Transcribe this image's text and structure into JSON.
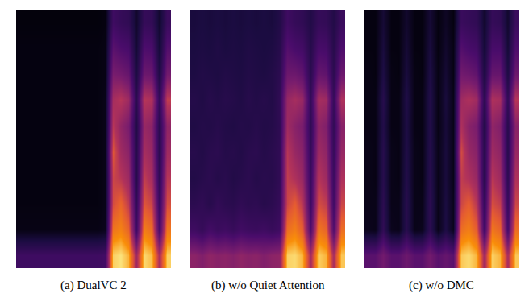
{
  "chart_data": [
    {
      "type": "heatmap",
      "title": "(a) DualVC 2",
      "zlim": [
        0,
        1
      ],
      "tick_labels": false,
      "cells": [
        [
          0.3,
          0.3,
          0.3,
          0.3,
          0.3,
          0.3,
          0.3,
          0.3,
          0.3,
          0.3,
          0.3,
          0.32,
          0.95,
          0.97,
          0.92,
          0.6,
          0.96,
          0.93,
          0.62,
          0.95
        ],
        [
          0.04,
          0.04,
          0.04,
          0.04,
          0.04,
          0.04,
          0.04,
          0.04,
          0.04,
          0.04,
          0.04,
          0.06,
          0.82,
          0.85,
          0.78,
          0.3,
          0.84,
          0.8,
          0.32,
          0.82
        ],
        [
          0.03,
          0.03,
          0.03,
          0.03,
          0.03,
          0.03,
          0.03,
          0.03,
          0.03,
          0.03,
          0.03,
          0.05,
          0.72,
          0.78,
          0.68,
          0.25,
          0.74,
          0.7,
          0.26,
          0.72
        ],
        [
          0.03,
          0.03,
          0.03,
          0.03,
          0.03,
          0.03,
          0.03,
          0.03,
          0.03,
          0.03,
          0.03,
          0.05,
          0.7,
          0.66,
          0.6,
          0.2,
          0.68,
          0.62,
          0.22,
          0.66
        ],
        [
          0.03,
          0.03,
          0.03,
          0.03,
          0.03,
          0.03,
          0.03,
          0.03,
          0.03,
          0.03,
          0.03,
          0.05,
          0.74,
          0.6,
          0.55,
          0.2,
          0.62,
          0.58,
          0.2,
          0.6
        ],
        [
          0.03,
          0.03,
          0.03,
          0.03,
          0.03,
          0.03,
          0.03,
          0.03,
          0.03,
          0.03,
          0.03,
          0.05,
          0.66,
          0.56,
          0.5,
          0.18,
          0.58,
          0.55,
          0.2,
          0.56
        ],
        [
          0.03,
          0.03,
          0.03,
          0.03,
          0.03,
          0.03,
          0.03,
          0.03,
          0.03,
          0.03,
          0.03,
          0.05,
          0.62,
          0.66,
          0.6,
          0.22,
          0.66,
          0.64,
          0.24,
          0.68
        ],
        [
          0.03,
          0.03,
          0.03,
          0.03,
          0.03,
          0.03,
          0.03,
          0.03,
          0.03,
          0.03,
          0.03,
          0.04,
          0.5,
          0.48,
          0.44,
          0.16,
          0.46,
          0.45,
          0.16,
          0.48
        ],
        [
          0.03,
          0.03,
          0.03,
          0.03,
          0.03,
          0.03,
          0.03,
          0.03,
          0.03,
          0.03,
          0.03,
          0.04,
          0.4,
          0.36,
          0.34,
          0.12,
          0.36,
          0.35,
          0.12,
          0.38
        ],
        [
          0.02,
          0.02,
          0.02,
          0.02,
          0.02,
          0.02,
          0.02,
          0.02,
          0.02,
          0.02,
          0.02,
          0.03,
          0.3,
          0.26,
          0.24,
          0.1,
          0.26,
          0.25,
          0.1,
          0.28
        ]
      ]
    },
    {
      "type": "heatmap",
      "title": "(b) w/o Quiet Attention",
      "zlim": [
        0,
        1
      ],
      "tick_labels": false,
      "cells": [
        [
          0.55,
          0.52,
          0.56,
          0.54,
          0.55,
          0.53,
          0.56,
          0.54,
          0.55,
          0.52,
          0.55,
          0.56,
          0.95,
          0.96,
          0.92,
          0.62,
          0.95,
          0.92,
          0.62,
          0.94
        ],
        [
          0.3,
          0.26,
          0.32,
          0.28,
          0.3,
          0.27,
          0.31,
          0.29,
          0.28,
          0.3,
          0.27,
          0.3,
          0.8,
          0.84,
          0.76,
          0.36,
          0.82,
          0.78,
          0.36,
          0.8
        ],
        [
          0.22,
          0.24,
          0.2,
          0.25,
          0.22,
          0.21,
          0.24,
          0.22,
          0.23,
          0.2,
          0.22,
          0.26,
          0.7,
          0.76,
          0.66,
          0.3,
          0.72,
          0.68,
          0.3,
          0.7
        ],
        [
          0.18,
          0.2,
          0.22,
          0.19,
          0.21,
          0.18,
          0.2,
          0.22,
          0.19,
          0.21,
          0.2,
          0.24,
          0.68,
          0.64,
          0.58,
          0.28,
          0.66,
          0.6,
          0.28,
          0.64
        ],
        [
          0.2,
          0.18,
          0.21,
          0.22,
          0.19,
          0.2,
          0.18,
          0.21,
          0.22,
          0.19,
          0.21,
          0.24,
          0.66,
          0.58,
          0.54,
          0.26,
          0.6,
          0.56,
          0.26,
          0.58
        ],
        [
          0.17,
          0.19,
          0.18,
          0.2,
          0.18,
          0.17,
          0.19,
          0.18,
          0.2,
          0.18,
          0.19,
          0.23,
          0.6,
          0.54,
          0.5,
          0.24,
          0.56,
          0.52,
          0.24,
          0.54
        ],
        [
          0.19,
          0.17,
          0.2,
          0.18,
          0.2,
          0.19,
          0.17,
          0.2,
          0.18,
          0.2,
          0.18,
          0.24,
          0.58,
          0.62,
          0.58,
          0.26,
          0.62,
          0.6,
          0.26,
          0.64
        ],
        [
          0.16,
          0.18,
          0.17,
          0.16,
          0.18,
          0.17,
          0.16,
          0.18,
          0.17,
          0.16,
          0.18,
          0.22,
          0.46,
          0.46,
          0.42,
          0.22,
          0.44,
          0.42,
          0.22,
          0.46
        ],
        [
          0.15,
          0.16,
          0.15,
          0.17,
          0.15,
          0.16,
          0.15,
          0.17,
          0.16,
          0.15,
          0.16,
          0.2,
          0.38,
          0.34,
          0.32,
          0.2,
          0.34,
          0.33,
          0.2,
          0.36
        ],
        [
          0.14,
          0.15,
          0.14,
          0.15,
          0.14,
          0.15,
          0.14,
          0.15,
          0.14,
          0.15,
          0.14,
          0.18,
          0.3,
          0.26,
          0.24,
          0.18,
          0.26,
          0.25,
          0.18,
          0.28
        ]
      ]
    },
    {
      "type": "heatmap",
      "title": "(c) w/o DMC",
      "zlim": [
        0,
        1
      ],
      "tick_labels": false,
      "cells": [
        [
          0.4,
          0.4,
          0.48,
          0.4,
          0.4,
          0.46,
          0.4,
          0.4,
          0.48,
          0.4,
          0.44,
          0.4,
          0.94,
          0.96,
          0.92,
          0.6,
          0.95,
          0.92,
          0.62,
          0.94
        ],
        [
          0.06,
          0.05,
          0.24,
          0.06,
          0.05,
          0.2,
          0.05,
          0.06,
          0.22,
          0.05,
          0.16,
          0.06,
          0.8,
          0.84,
          0.76,
          0.3,
          0.82,
          0.78,
          0.32,
          0.8
        ],
        [
          0.05,
          0.05,
          0.22,
          0.05,
          0.05,
          0.2,
          0.05,
          0.05,
          0.22,
          0.05,
          0.15,
          0.06,
          0.7,
          0.76,
          0.66,
          0.25,
          0.72,
          0.68,
          0.26,
          0.7
        ],
        [
          0.05,
          0.04,
          0.2,
          0.05,
          0.04,
          0.18,
          0.05,
          0.04,
          0.2,
          0.05,
          0.14,
          0.05,
          0.68,
          0.64,
          0.58,
          0.2,
          0.66,
          0.6,
          0.22,
          0.64
        ],
        [
          0.05,
          0.04,
          0.2,
          0.05,
          0.04,
          0.17,
          0.05,
          0.04,
          0.19,
          0.05,
          0.14,
          0.05,
          0.72,
          0.58,
          0.54,
          0.2,
          0.6,
          0.56,
          0.2,
          0.58
        ],
        [
          0.04,
          0.04,
          0.18,
          0.04,
          0.04,
          0.16,
          0.04,
          0.04,
          0.18,
          0.04,
          0.13,
          0.05,
          0.64,
          0.54,
          0.5,
          0.18,
          0.56,
          0.52,
          0.2,
          0.54
        ],
        [
          0.04,
          0.04,
          0.2,
          0.04,
          0.04,
          0.17,
          0.04,
          0.04,
          0.18,
          0.04,
          0.14,
          0.05,
          0.6,
          0.64,
          0.6,
          0.22,
          0.64,
          0.62,
          0.24,
          0.66
        ],
        [
          0.04,
          0.03,
          0.16,
          0.04,
          0.03,
          0.14,
          0.04,
          0.03,
          0.16,
          0.04,
          0.12,
          0.04,
          0.48,
          0.46,
          0.42,
          0.16,
          0.44,
          0.44,
          0.16,
          0.46
        ],
        [
          0.03,
          0.03,
          0.14,
          0.03,
          0.03,
          0.12,
          0.03,
          0.03,
          0.14,
          0.03,
          0.1,
          0.04,
          0.38,
          0.34,
          0.32,
          0.12,
          0.34,
          0.34,
          0.12,
          0.36
        ],
        [
          0.03,
          0.03,
          0.12,
          0.03,
          0.03,
          0.1,
          0.03,
          0.03,
          0.12,
          0.03,
          0.08,
          0.03,
          0.28,
          0.26,
          0.24,
          0.1,
          0.26,
          0.24,
          0.1,
          0.28
        ]
      ]
    }
  ]
}
